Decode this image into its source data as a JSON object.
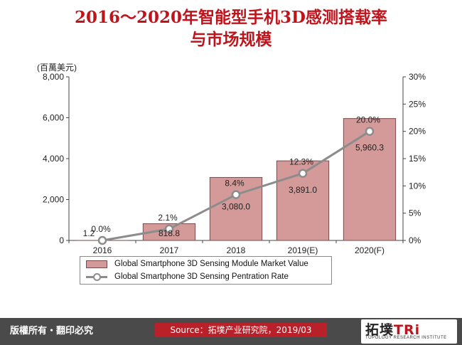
{
  "title": {
    "line1": "2016～2020年智能型手机3D感测搭载率",
    "line2": "与市场规模"
  },
  "footer": {
    "rights": "版權所有・翻印必究",
    "source": "Source：拓墣产业研究院，2019/03",
    "logo_main_a": "拓墣",
    "logo_main_b": "TRi",
    "logo_sub": "TOPOLOGY RESEARCH INSTITUTE"
  },
  "colors": {
    "title": "#c0141c",
    "bar_fill": "#d49a9a",
    "bar_stroke": "#7a4a4a",
    "line": "#8c8c8c",
    "footer_bg": "#4a4a4a",
    "source_bg": "#b8202a"
  },
  "chart_data": {
    "type": "bar",
    "unit_label": "(百萬美元)",
    "categories": [
      "2016",
      "2017",
      "2018",
      "2019(E)",
      "2020(F)"
    ],
    "ylim": [
      0,
      8000
    ],
    "yticks": [
      "0",
      "2,000",
      "4,000",
      "6,000",
      "8,000"
    ],
    "y2lim": [
      0,
      30
    ],
    "y2ticks": [
      "0%",
      "5%",
      "10%",
      "15%",
      "20%",
      "25%",
      "30%"
    ],
    "grid": false,
    "legend_position": "bottom",
    "series": [
      {
        "name": "Global Smartphone 3D Sensing Module Market Value",
        "type": "bar",
        "axis": "left",
        "values": [
          1.2,
          818.8,
          3080.0,
          3891.0,
          5960.3
        ],
        "labels": [
          "1.2",
          "818.8",
          "3,080.0",
          "3,891.0",
          "5,960.3"
        ]
      },
      {
        "name": "Global Smartphone 3D Sensing Pentration Rate",
        "type": "line",
        "axis": "right",
        "values": [
          0.0,
          2.1,
          8.4,
          12.3,
          20.0
        ],
        "labels": [
          "0.0%",
          "2.1%",
          "8.4%",
          "12.3%",
          "20.0%"
        ]
      }
    ]
  }
}
